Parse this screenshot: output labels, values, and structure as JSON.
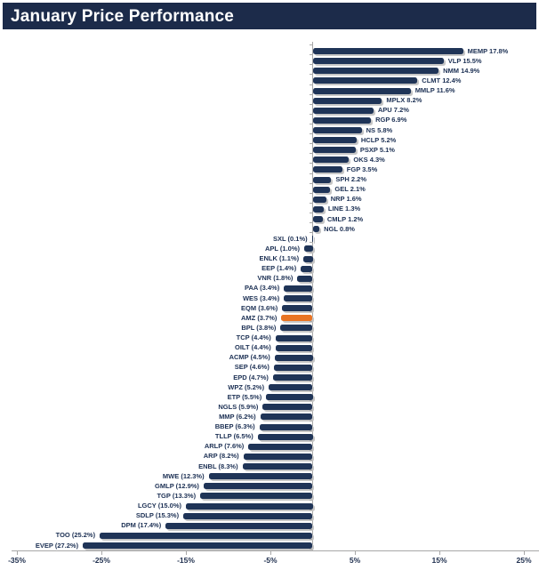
{
  "header": {
    "title": "January Price Performance"
  },
  "colors": {
    "title_bg": "#1c2b4a",
    "title_text": "#ffffff",
    "bar": "#1f3457",
    "highlight": "#e87424",
    "axis": "#a8a8a8",
    "label_text": "#1c3054"
  },
  "chart_data": {
    "type": "bar",
    "orientation": "horizontal",
    "title": "January Price Performance",
    "xlabel": "",
    "ylabel": "",
    "xlim": [
      -35.5,
      26.8
    ],
    "grid": false,
    "legend": false,
    "x_tick_labels": [
      "-35%",
      "-25%",
      "-15%",
      "-5%",
      "5%",
      "15%",
      "25%"
    ],
    "x_tick_values": [
      -35,
      -25,
      -15,
      -5,
      5,
      15,
      25
    ],
    "highlight_category": "AMZ",
    "rows": [
      {
        "ticker": "MEMP",
        "value": 17.8,
        "label": "MEMP 17.8%"
      },
      {
        "ticker": "VLP",
        "value": 15.5,
        "label": "VLP 15.5%"
      },
      {
        "ticker": "NMM",
        "value": 14.9,
        "label": "NMM 14.9%"
      },
      {
        "ticker": "CLMT",
        "value": 12.4,
        "label": "CLMT 12.4%"
      },
      {
        "ticker": "MMLP",
        "value": 11.6,
        "label": "MMLP 11.6%"
      },
      {
        "ticker": "MPLX",
        "value": 8.2,
        "label": "MPLX 8.2%"
      },
      {
        "ticker": "APU",
        "value": 7.2,
        "label": "APU 7.2%"
      },
      {
        "ticker": "RGP",
        "value": 6.9,
        "label": "RGP 6.9%"
      },
      {
        "ticker": "NS",
        "value": 5.8,
        "label": "NS 5.8%"
      },
      {
        "ticker": "HCLP",
        "value": 5.2,
        "label": "HCLP 5.2%"
      },
      {
        "ticker": "PSXP",
        "value": 5.1,
        "label": "PSXP 5.1%"
      },
      {
        "ticker": "OKS",
        "value": 4.3,
        "label": "OKS 4.3%"
      },
      {
        "ticker": "FGP",
        "value": 3.5,
        "label": "FGP 3.5%"
      },
      {
        "ticker": "SPH",
        "value": 2.2,
        "label": "SPH 2.2%"
      },
      {
        "ticker": "GEL",
        "value": 2.1,
        "label": "GEL 2.1%"
      },
      {
        "ticker": "NRP",
        "value": 1.6,
        "label": "NRP 1.6%"
      },
      {
        "ticker": "LINE",
        "value": 1.3,
        "label": "LINE 1.3%"
      },
      {
        "ticker": "CMLP",
        "value": 1.2,
        "label": "CMLP 1.2%"
      },
      {
        "ticker": "NGL",
        "value": 0.8,
        "label": "NGL 0.8%"
      },
      {
        "ticker": "SXL",
        "value": -0.1,
        "label": "SXL (0.1%)"
      },
      {
        "ticker": "APL",
        "value": -1.0,
        "label": "APL (1.0%)"
      },
      {
        "ticker": "ENLK",
        "value": -1.1,
        "label": "ENLK (1.1%)"
      },
      {
        "ticker": "EEP",
        "value": -1.4,
        "label": "EEP (1.4%)"
      },
      {
        "ticker": "VNR",
        "value": -1.8,
        "label": "VNR (1.8%)"
      },
      {
        "ticker": "PAA",
        "value": -3.4,
        "label": "PAA (3.4%)"
      },
      {
        "ticker": "WES",
        "value": -3.4,
        "label": "WES (3.4%)"
      },
      {
        "ticker": "EQM",
        "value": -3.6,
        "label": "EQM (3.6%)"
      },
      {
        "ticker": "AMZ",
        "value": -3.7,
        "label": "AMZ (3.7%)"
      },
      {
        "ticker": "BPL",
        "value": -3.8,
        "label": "BPL (3.8%)"
      },
      {
        "ticker": "TCP",
        "value": -4.4,
        "label": "TCP (4.4%)"
      },
      {
        "ticker": "OILT",
        "value": -4.4,
        "label": "OILT (4.4%)"
      },
      {
        "ticker": "ACMP",
        "value": -4.5,
        "label": "ACMP (4.5%)"
      },
      {
        "ticker": "SEP",
        "value": -4.6,
        "label": "SEP (4.6%)"
      },
      {
        "ticker": "EPD",
        "value": -4.7,
        "label": "EPD (4.7%)"
      },
      {
        "ticker": "WPZ",
        "value": -5.2,
        "label": "WPZ (5.2%)"
      },
      {
        "ticker": "ETP",
        "value": -5.5,
        "label": "ETP (5.5%)"
      },
      {
        "ticker": "NGLS",
        "value": -5.9,
        "label": "NGLS (5.9%)"
      },
      {
        "ticker": "MMP",
        "value": -6.2,
        "label": "MMP (6.2%)"
      },
      {
        "ticker": "BBEP",
        "value": -6.3,
        "label": "BBEP (6.3%)"
      },
      {
        "ticker": "TLLP",
        "value": -6.5,
        "label": "TLLP (6.5%)"
      },
      {
        "ticker": "ARLP",
        "value": -7.6,
        "label": "ARLP (7.6%)"
      },
      {
        "ticker": "ARP",
        "value": -8.2,
        "label": "ARP (8.2%)"
      },
      {
        "ticker": "ENBL",
        "value": -8.3,
        "label": "ENBL (8.3%)"
      },
      {
        "ticker": "MWE",
        "value": -12.3,
        "label": "MWE (12.3%)"
      },
      {
        "ticker": "GMLP",
        "value": -12.9,
        "label": "GMLP (12.9%)"
      },
      {
        "ticker": "TGP",
        "value": -13.3,
        "label": "TGP (13.3%)"
      },
      {
        "ticker": "LGCY",
        "value": -15.0,
        "label": "LGCY (15.0%)"
      },
      {
        "ticker": "SDLP",
        "value": -15.3,
        "label": "SDLP (15.3%)"
      },
      {
        "ticker": "DPM",
        "value": -17.4,
        "label": "DPM (17.4%)"
      },
      {
        "ticker": "TOO",
        "value": -25.2,
        "label": "TOO (25.2%)"
      },
      {
        "ticker": "EVEP",
        "value": -27.2,
        "label": "EVEP (27.2%)"
      }
    ]
  }
}
